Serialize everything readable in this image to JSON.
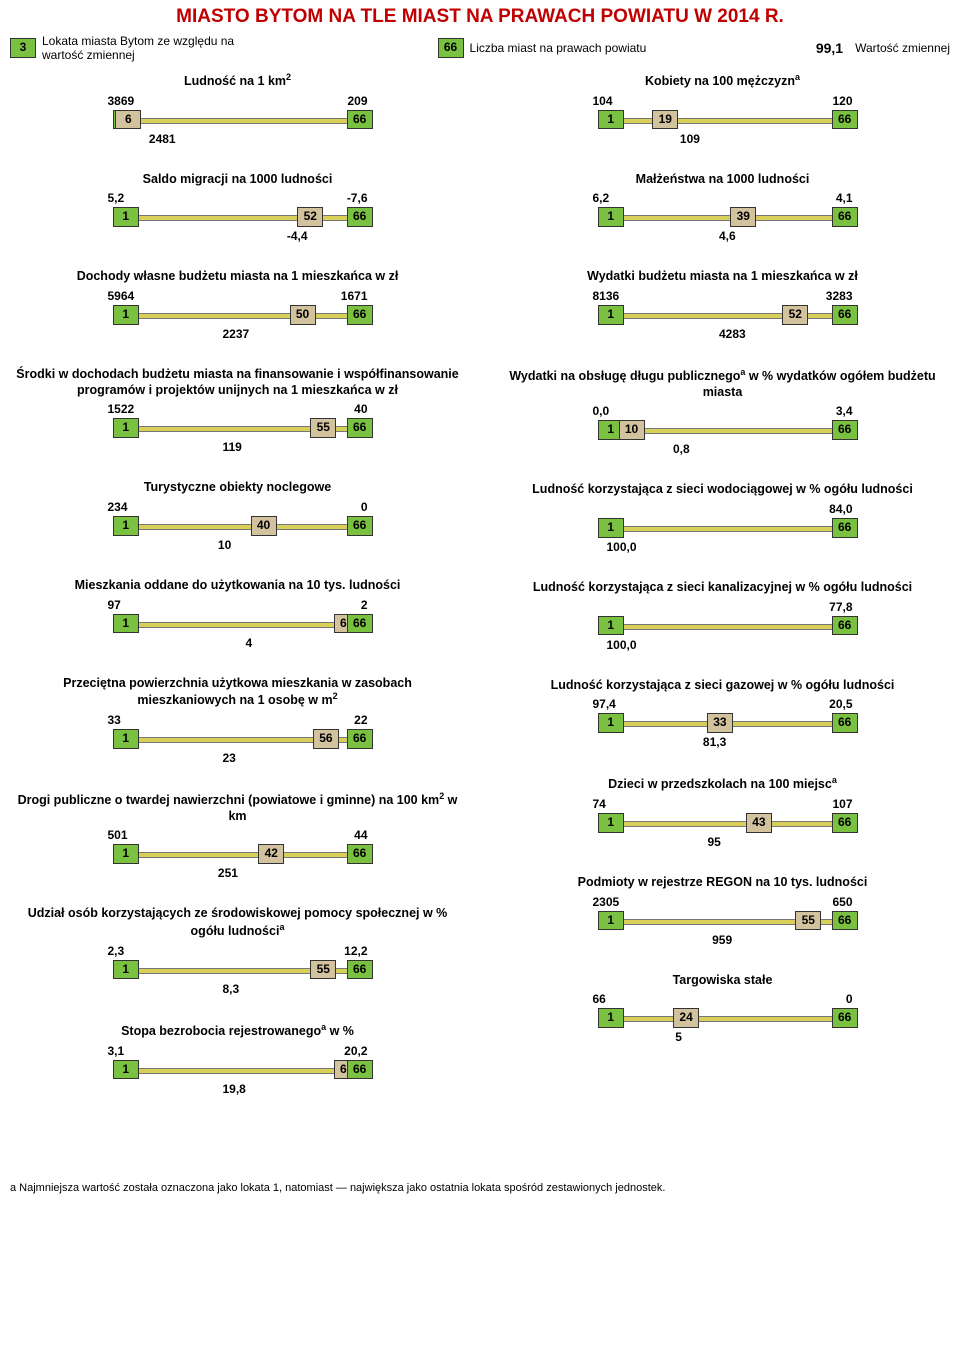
{
  "colors": {
    "title": "#c00000",
    "green_box": "#7ac142",
    "beige_box": "#d2c29d",
    "rail": "#d9d05a",
    "rail_border": "#777777"
  },
  "title": "MIASTO BYTOM NA TLE MIAST NA PRAWACH POWIATU W 2014 R.",
  "legend": {
    "rank_box": "3",
    "rank_text": "Lokata miasta Bytom ze względu na wartość zmiennej",
    "total_box": "66",
    "total_text": "Liczba miast na prawach powiatu",
    "value_sample": "99,1",
    "value_text": "Wartość zmiennej"
  },
  "footer": "a  Najmniejsza wartość została oznaczona jako lokata 1, natomiast — największa jako ostatnia lokata spośród zestawionych jednostek.",
  "left": [
    {
      "title": "Ludność na 1 km",
      "sup": "2",
      "vmax": "3869",
      "vmin": "209",
      "vmid": "2481",
      "rank": "6",
      "rank_pct": 8,
      "mid_pct": 18
    },
    {
      "title": "Saldo migracji na 1000 ludności",
      "vmax": "5,2",
      "vmin": "-7,6",
      "vmid": "-4,4",
      "rank": "52",
      "rank_pct": 78,
      "mid_pct": 78
    },
    {
      "title": "Dochody własne budżetu miasta na 1 mieszkańca w zł",
      "vmax": "5964",
      "vmin": "1671",
      "vmid": "2237",
      "rank": "50",
      "rank_pct": 75,
      "mid_pct": 50
    },
    {
      "title": "Środki w dochodach budżetu miasta na finansowanie i współfinansowanie programów i projektów unijnych na 1 mieszkańca w zł",
      "vmax": "1522",
      "vmin": "40",
      "vmid": "119",
      "rank": "55",
      "rank_pct": 83,
      "mid_pct": 50
    },
    {
      "title": "Turystyczne obiekty noclegowe",
      "vmax": "234",
      "vmin": "0",
      "vmid": "10",
      "rank": "40",
      "rank_pct": 60,
      "mid_pct": 48
    },
    {
      "title": "Mieszkania oddane do użytkowania na 10 tys. ludności",
      "vmax": "97",
      "vmin": "2",
      "vmid": "4",
      "rank": "65",
      "rank_pct": 92,
      "mid_pct": 60
    },
    {
      "title": "Przeciętna powierzchnia użytkowa mieszkania w zasobach mieszkaniowych na 1 osobę w m",
      "sup": "2",
      "vmax": "33",
      "vmin": "22",
      "vmid": "23",
      "rank": "56",
      "rank_pct": 84,
      "mid_pct": 50
    },
    {
      "title": "Drogi publiczne o twardej nawierzchni (powiatowe i gminne) na 100 km",
      "sup": "2",
      "title2": " w km",
      "vmax": "501",
      "vmin": "44",
      "vmid": "251",
      "rank": "42",
      "rank_pct": 63,
      "mid_pct": 48
    },
    {
      "title": "Udział osób korzystających ze środowiskowej pomocy społecznej w % ogółu ludności",
      "supA": true,
      "vmax": "2,3",
      "vmin": "12,2",
      "vmid": "8,3",
      "rank": "55",
      "rank_pct": 83,
      "mid_pct": 50
    },
    {
      "title": "Stopa bezrobocia rejestrowanego",
      "supA": true,
      "title2": "  w %",
      "vmax": "3,1",
      "vmin": "20,2",
      "vmid": "19,8",
      "rank": "65",
      "rank_pct": 92,
      "mid_pct": 50
    }
  ],
  "right": [
    {
      "title": "Kobiety na 100 mężczyzn",
      "supA": true,
      "vmax": "104",
      "vmin": "120",
      "vmid": "109",
      "rank": "19",
      "rank_pct": 28,
      "mid_pct": 38
    },
    {
      "title": "Małżeństwa na 1000 ludności",
      "vmax": "6,2",
      "vmin": "4,1",
      "vmid": "4,6",
      "rank": "39",
      "rank_pct": 58,
      "mid_pct": 55
    },
    {
      "title": "Wydatki budżetu miasta na 1 mieszkańca w zł",
      "vmax": "8136",
      "vmin": "3283",
      "vmid": "4283",
      "rank": "52",
      "rank_pct": 78,
      "mid_pct": 55
    },
    {
      "title": "Wydatki na obsługę długu publicznego",
      "supA": true,
      "title2": " w % wydatków ogółem budżetu miasta",
      "vmax": "0,0",
      "vmin": "3,4",
      "vmid": "0,8",
      "rank": "10",
      "rank_pct": 15,
      "mid_pct": 35
    },
    {
      "title": "Ludność korzystająca z sieci wodociągowej w % ogółu ludności",
      "vmax": "",
      "vmin": "84,0",
      "vmid": "100,0",
      "no_rank": true,
      "mid_pct": 7,
      "mid_align": "left"
    },
    {
      "title": "Ludność korzystająca z sieci kanalizacyjnej w % ogółu ludności",
      "vmax": "",
      "vmin": "77,8",
      "vmid": "100,0",
      "no_rank": true,
      "mid_pct": 7,
      "mid_align": "left"
    },
    {
      "title": "Ludność korzystająca z sieci gazowej w % ogółu ludności",
      "vmax": "97,4",
      "vmin": "20,5",
      "vmid": "81,3",
      "rank": "33",
      "rank_pct": 49,
      "mid_pct": 48
    },
    {
      "title": "Dzieci w przedszkolach na 100 miejsc",
      "supA": true,
      "vmax": "74",
      "vmin": "107",
      "vmid": "95",
      "rank": "43",
      "rank_pct": 64,
      "mid_pct": 50
    },
    {
      "title": "Podmioty w rejestrze REGON na 10 tys. ludności",
      "vmax": "2305",
      "vmin": "650",
      "vmid": "959",
      "rank": "55",
      "rank_pct": 83,
      "mid_pct": 52
    },
    {
      "title": "Targowiska stałe",
      "vmax": "66",
      "vmin": "0",
      "vmid": "5",
      "rank": "24",
      "rank_pct": 36,
      "mid_pct": 36
    }
  ]
}
